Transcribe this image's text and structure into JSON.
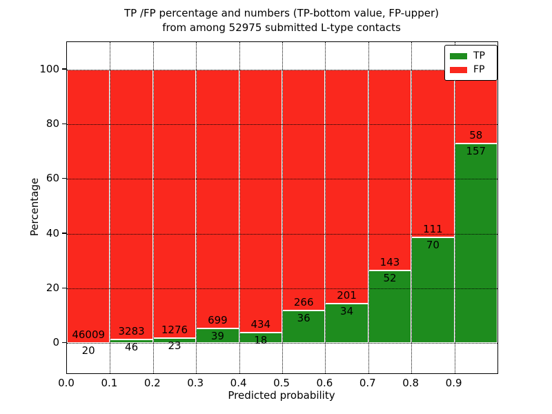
{
  "title": {
    "line1": "TP /FP percentage and numbers (TP-bottom value, FP-upper)",
    "line2": "from among 52975 submitted L-type contacts"
  },
  "chart_data": {
    "type": "bar",
    "stacked": true,
    "normalization": "each bin scaled to percent of bin total (TP+FP)",
    "title": "TP /FP percentage and numbers (TP-bottom value, FP-upper) from among 52975 submitted L-type contacts",
    "xlabel": "Predicted probability",
    "ylabel": "Percentage",
    "total_contacts": 52975,
    "bin_starts": [
      0.0,
      0.1,
      0.2,
      0.3,
      0.4,
      0.5,
      0.6,
      0.7,
      0.8,
      0.9
    ],
    "bin_width": 0.1,
    "x_tick_labels": [
      "0.0",
      "0.1",
      "0.2",
      "0.3",
      "0.4",
      "0.5",
      "0.6",
      "0.7",
      "0.8",
      "0.9"
    ],
    "y_ticks": [
      0,
      20,
      40,
      60,
      80,
      100
    ],
    "ylim": [
      -11,
      110
    ],
    "xlim": [
      0.0,
      1.0
    ],
    "grid": true,
    "legend_position": "upper right",
    "series": [
      {
        "name": "TP",
        "color": "#1e8c1e",
        "position": "bottom",
        "counts": [
          20,
          46,
          23,
          39,
          18,
          36,
          34,
          52,
          70,
          157
        ]
      },
      {
        "name": "FP",
        "color": "#fa281e",
        "position": "top",
        "counts": [
          46009,
          3283,
          1276,
          699,
          434,
          266,
          201,
          143,
          111,
          58
        ]
      }
    ],
    "tp_percent_of_bin": [
      0.04,
      1.38,
      1.77,
      5.28,
      3.98,
      11.92,
      14.47,
      26.67,
      38.67,
      73.02
    ],
    "bar_edge_color": "#ffffff",
    "grid_color": "#000000"
  }
}
